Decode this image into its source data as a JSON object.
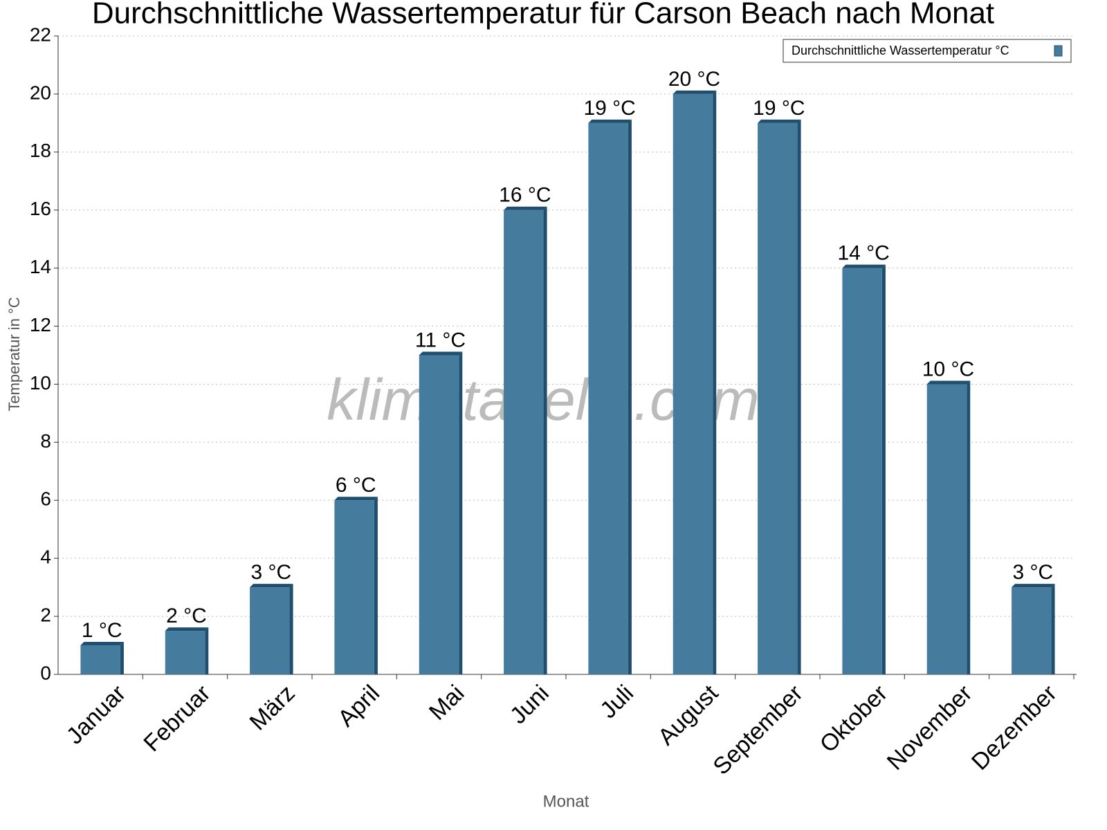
{
  "chart_data": {
    "type": "bar",
    "title": "Durchschnittliche Wassertemperatur für Carson Beach nach Monat",
    "x_label": "Monat",
    "y_label": "Temperatur in °C",
    "watermark": "klimatabelle.com",
    "categories": [
      "Januar",
      "Februar",
      "März",
      "April",
      "Mai",
      "Juni",
      "Juli",
      "August",
      "September",
      "Oktober",
      "November",
      "Dezember"
    ],
    "series": [
      {
        "name": "Durchschnittliche Wassertemperatur °C",
        "color": "#457b9d",
        "values": [
          1,
          1.5,
          3,
          6,
          11,
          16,
          19,
          20,
          19,
          14,
          10,
          3
        ],
        "value_labels": [
          "1 °C",
          "2 °C",
          "3 °C",
          "6 °C",
          "11 °C",
          "16 °C",
          "19 °C",
          "20 °C",
          "19 °C",
          "14 °C",
          "10 °C",
          "3 °C"
        ]
      }
    ],
    "ylim": [
      0,
      22
    ],
    "yticks": [
      0,
      2,
      4,
      6,
      8,
      10,
      12,
      14,
      16,
      18,
      20,
      22
    ],
    "grid": true,
    "legend": "top-right"
  }
}
